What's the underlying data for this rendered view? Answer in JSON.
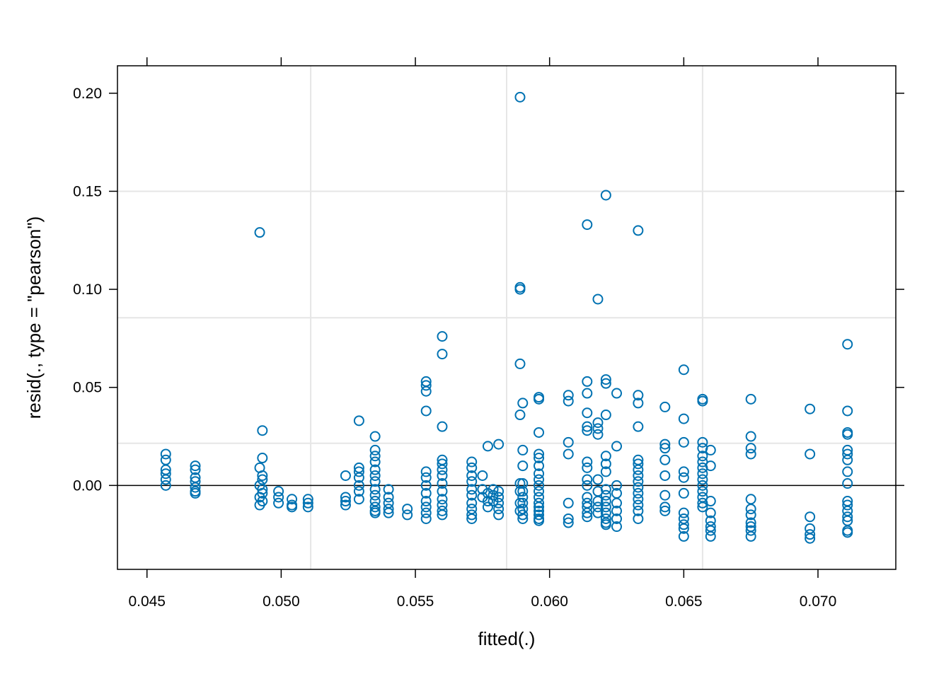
{
  "chart_data": {
    "type": "scatter",
    "xlabel": "fitted(.)",
    "ylabel": "resid(., type = \"pearson\")",
    "xlim": [
      0.0439,
      0.0729
    ],
    "ylim": [
      -0.0428,
      0.214
    ],
    "x_ticks": [
      0.045,
      0.05,
      0.055,
      0.06,
      0.065,
      0.07
    ],
    "x_tick_labels": [
      "0.045",
      "0.050",
      "0.055",
      "0.060",
      "0.065",
      "0.070"
    ],
    "y_ticks": [
      0.0,
      0.05,
      0.1,
      0.15,
      0.2
    ],
    "y_tick_labels": [
      "0.00",
      "0.05",
      "0.10",
      "0.15",
      "0.20"
    ],
    "grid": {
      "vertical": [
        0.0511,
        0.0584,
        0.0657
      ],
      "horizontal": [
        0.0215,
        0.0855,
        0.15
      ]
    },
    "reference_line_y": 0,
    "colors": {
      "points": "#0072b2",
      "grid": "#e6e6e6",
      "axis": "#000000"
    },
    "series": [
      {
        "points": [
          [
            0.0457,
            0.016
          ],
          [
            0.0457,
            0.013
          ],
          [
            0.0457,
            0.008
          ],
          [
            0.0457,
            0.006
          ],
          [
            0.0457,
            0.003
          ],
          [
            0.0457,
            0.0
          ],
          [
            0.0468,
            0.01
          ],
          [
            0.0468,
            0.008
          ],
          [
            0.0468,
            0.004
          ],
          [
            0.0468,
            0.002
          ],
          [
            0.0468,
            -0.001
          ],
          [
            0.0468,
            -0.003
          ],
          [
            0.0468,
            -0.004
          ],
          [
            0.0492,
            0.129
          ],
          [
            0.0493,
            0.028
          ],
          [
            0.0493,
            0.014
          ],
          [
            0.0492,
            0.009
          ],
          [
            0.0493,
            0.005
          ],
          [
            0.0493,
            0.003
          ],
          [
            0.0492,
            0.0
          ],
          [
            0.0493,
            -0.002
          ],
          [
            0.0493,
            -0.004
          ],
          [
            0.0492,
            -0.006
          ],
          [
            0.0493,
            -0.008
          ],
          [
            0.0492,
            -0.01
          ],
          [
            0.0499,
            -0.003
          ],
          [
            0.0499,
            -0.006
          ],
          [
            0.0499,
            -0.009
          ],
          [
            0.0504,
            -0.007
          ],
          [
            0.0504,
            -0.01
          ],
          [
            0.0504,
            -0.011
          ],
          [
            0.051,
            -0.007
          ],
          [
            0.051,
            -0.009
          ],
          [
            0.051,
            -0.011
          ],
          [
            0.0524,
            0.005
          ],
          [
            0.0524,
            -0.006
          ],
          [
            0.0524,
            -0.008
          ],
          [
            0.0524,
            -0.01
          ],
          [
            0.0529,
            0.033
          ],
          [
            0.0529,
            0.009
          ],
          [
            0.0529,
            0.007
          ],
          [
            0.0529,
            0.004
          ],
          [
            0.0529,
            0.0
          ],
          [
            0.0529,
            -0.003
          ],
          [
            0.0529,
            -0.007
          ],
          [
            0.0535,
            0.025
          ],
          [
            0.0535,
            0.018
          ],
          [
            0.0535,
            0.015
          ],
          [
            0.0535,
            0.012
          ],
          [
            0.0535,
            0.008
          ],
          [
            0.0535,
            0.005
          ],
          [
            0.0535,
            0.002
          ],
          [
            0.0535,
            -0.002
          ],
          [
            0.0535,
            -0.005
          ],
          [
            0.0535,
            -0.008
          ],
          [
            0.0535,
            -0.011
          ],
          [
            0.0535,
            -0.013
          ],
          [
            0.0535,
            -0.014
          ],
          [
            0.054,
            -0.002
          ],
          [
            0.054,
            -0.006
          ],
          [
            0.054,
            -0.009
          ],
          [
            0.054,
            -0.012
          ],
          [
            0.054,
            -0.014
          ],
          [
            0.0547,
            -0.012
          ],
          [
            0.0547,
            -0.015
          ],
          [
            0.0554,
            0.053
          ],
          [
            0.0554,
            0.051
          ],
          [
            0.0554,
            0.048
          ],
          [
            0.0554,
            0.038
          ],
          [
            0.0554,
            0.007
          ],
          [
            0.0554,
            0.004
          ],
          [
            0.0554,
            0.0
          ],
          [
            0.0554,
            -0.004
          ],
          [
            0.0554,
            -0.008
          ],
          [
            0.0554,
            -0.011
          ],
          [
            0.0554,
            -0.014
          ],
          [
            0.0554,
            -0.017
          ],
          [
            0.056,
            0.076
          ],
          [
            0.056,
            0.067
          ],
          [
            0.056,
            0.03
          ],
          [
            0.056,
            0.013
          ],
          [
            0.056,
            0.011
          ],
          [
            0.056,
            0.008
          ],
          [
            0.056,
            0.005
          ],
          [
            0.056,
            0.001
          ],
          [
            0.056,
            -0.003
          ],
          [
            0.056,
            -0.007
          ],
          [
            0.056,
            -0.01
          ],
          [
            0.056,
            -0.013
          ],
          [
            0.056,
            -0.015
          ],
          [
            0.0571,
            0.012
          ],
          [
            0.0571,
            0.009
          ],
          [
            0.0571,
            0.005
          ],
          [
            0.0571,
            0.002
          ],
          [
            0.0571,
            -0.002
          ],
          [
            0.0571,
            -0.005
          ],
          [
            0.0571,
            -0.009
          ],
          [
            0.0571,
            -0.012
          ],
          [
            0.0571,
            -0.015
          ],
          [
            0.0571,
            -0.017
          ],
          [
            0.0575,
            0.005
          ],
          [
            0.0575,
            -0.002
          ],
          [
            0.0575,
            -0.006
          ],
          [
            0.0577,
            0.02
          ],
          [
            0.0577,
            -0.004
          ],
          [
            0.0577,
            -0.008
          ],
          [
            0.0577,
            -0.011
          ],
          [
            0.0579,
            -0.002
          ],
          [
            0.0579,
            -0.005
          ],
          [
            0.0579,
            -0.008
          ],
          [
            0.0581,
            0.021
          ],
          [
            0.0581,
            -0.003
          ],
          [
            0.0581,
            -0.006
          ],
          [
            0.0581,
            -0.009
          ],
          [
            0.0581,
            -0.012
          ],
          [
            0.0581,
            -0.015
          ],
          [
            0.0589,
            0.198
          ],
          [
            0.0589,
            0.101
          ],
          [
            0.0589,
            0.1
          ],
          [
            0.0589,
            0.062
          ],
          [
            0.0589,
            0.036
          ],
          [
            0.0589,
            0.001
          ],
          [
            0.0589,
            -0.003
          ],
          [
            0.0589,
            -0.009
          ],
          [
            0.0589,
            -0.013
          ],
          [
            0.059,
            0.042
          ],
          [
            0.059,
            0.018
          ],
          [
            0.059,
            0.01
          ],
          [
            0.059,
            0.001
          ],
          [
            0.059,
            -0.003
          ],
          [
            0.059,
            -0.006
          ],
          [
            0.059,
            -0.009
          ],
          [
            0.059,
            -0.012
          ],
          [
            0.059,
            -0.015
          ],
          [
            0.059,
            -0.017
          ],
          [
            0.0596,
            0.045
          ],
          [
            0.0596,
            0.044
          ],
          [
            0.0596,
            0.027
          ],
          [
            0.0596,
            0.016
          ],
          [
            0.0596,
            0.014
          ],
          [
            0.0596,
            0.01
          ],
          [
            0.0596,
            0.006
          ],
          [
            0.0596,
            0.003
          ],
          [
            0.0596,
            0.0
          ],
          [
            0.0596,
            -0.003
          ],
          [
            0.0596,
            -0.006
          ],
          [
            0.0596,
            -0.009
          ],
          [
            0.0596,
            -0.011
          ],
          [
            0.0596,
            -0.013
          ],
          [
            0.0596,
            -0.015
          ],
          [
            0.0596,
            -0.017
          ],
          [
            0.0596,
            -0.018
          ],
          [
            0.0607,
            0.046
          ],
          [
            0.0607,
            0.043
          ],
          [
            0.0607,
            0.022
          ],
          [
            0.0607,
            0.016
          ],
          [
            0.0607,
            -0.009
          ],
          [
            0.0607,
            -0.017
          ],
          [
            0.0607,
            -0.019
          ],
          [
            0.0614,
            0.133
          ],
          [
            0.0614,
            0.053
          ],
          [
            0.0614,
            0.047
          ],
          [
            0.0614,
            0.037
          ],
          [
            0.0614,
            0.03
          ],
          [
            0.0614,
            0.028
          ],
          [
            0.0614,
            0.012
          ],
          [
            0.0614,
            0.009
          ],
          [
            0.0614,
            0.003
          ],
          [
            0.0614,
            0.0
          ],
          [
            0.0614,
            -0.006
          ],
          [
            0.0614,
            -0.009
          ],
          [
            0.0614,
            -0.011
          ],
          [
            0.0614,
            -0.014
          ],
          [
            0.0614,
            -0.016
          ],
          [
            0.0618,
            0.095
          ],
          [
            0.0618,
            0.032
          ],
          [
            0.0618,
            0.029
          ],
          [
            0.0618,
            0.026
          ],
          [
            0.0618,
            0.003
          ],
          [
            0.0618,
            -0.003
          ],
          [
            0.0618,
            -0.008
          ],
          [
            0.0618,
            -0.011
          ],
          [
            0.0618,
            -0.014
          ],
          [
            0.0621,
            0.148
          ],
          [
            0.0621,
            0.054
          ],
          [
            0.0621,
            0.052
          ],
          [
            0.0621,
            0.036
          ],
          [
            0.0621,
            0.015
          ],
          [
            0.0621,
            0.011
          ],
          [
            0.0621,
            0.007
          ],
          [
            0.0621,
            -0.002
          ],
          [
            0.0621,
            -0.005
          ],
          [
            0.0621,
            -0.008
          ],
          [
            0.0621,
            -0.011
          ],
          [
            0.0621,
            -0.014
          ],
          [
            0.0621,
            -0.017
          ],
          [
            0.0621,
            -0.019
          ],
          [
            0.0621,
            -0.02
          ],
          [
            0.0625,
            0.047
          ],
          [
            0.0625,
            0.02
          ],
          [
            0.0625,
            0.0
          ],
          [
            0.0625,
            -0.004
          ],
          [
            0.0625,
            -0.009
          ],
          [
            0.0625,
            -0.013
          ],
          [
            0.0625,
            -0.017
          ],
          [
            0.0625,
            -0.021
          ],
          [
            0.0633,
            0.13
          ],
          [
            0.0633,
            0.046
          ],
          [
            0.0633,
            0.042
          ],
          [
            0.0633,
            0.03
          ],
          [
            0.0633,
            0.013
          ],
          [
            0.0633,
            0.011
          ],
          [
            0.0633,
            0.008
          ],
          [
            0.0633,
            0.005
          ],
          [
            0.0633,
            0.002
          ],
          [
            0.0633,
            -0.001
          ],
          [
            0.0633,
            -0.004
          ],
          [
            0.0633,
            -0.007
          ],
          [
            0.0633,
            -0.01
          ],
          [
            0.0633,
            -0.013
          ],
          [
            0.0633,
            -0.017
          ],
          [
            0.0643,
            0.04
          ],
          [
            0.0643,
            0.021
          ],
          [
            0.0643,
            0.019
          ],
          [
            0.0643,
            0.013
          ],
          [
            0.0643,
            0.005
          ],
          [
            0.0643,
            -0.005
          ],
          [
            0.0643,
            -0.011
          ],
          [
            0.0643,
            -0.013
          ],
          [
            0.065,
            0.059
          ],
          [
            0.065,
            0.034
          ],
          [
            0.065,
            0.022
          ],
          [
            0.065,
            0.007
          ],
          [
            0.065,
            0.004
          ],
          [
            0.065,
            -0.004
          ],
          [
            0.065,
            -0.014
          ],
          [
            0.065,
            -0.017
          ],
          [
            0.065,
            -0.02
          ],
          [
            0.065,
            -0.022
          ],
          [
            0.065,
            -0.026
          ],
          [
            0.0657,
            0.044
          ],
          [
            0.0657,
            0.043
          ],
          [
            0.0657,
            0.022
          ],
          [
            0.0657,
            0.019
          ],
          [
            0.0657,
            0.015
          ],
          [
            0.0657,
            0.012
          ],
          [
            0.0657,
            0.009
          ],
          [
            0.0657,
            0.006
          ],
          [
            0.0657,
            0.003
          ],
          [
            0.0657,
            0.0
          ],
          [
            0.0657,
            -0.003
          ],
          [
            0.0657,
            -0.006
          ],
          [
            0.0657,
            -0.009
          ],
          [
            0.0657,
            -0.011
          ],
          [
            0.066,
            0.018
          ],
          [
            0.066,
            0.01
          ],
          [
            0.066,
            -0.008
          ],
          [
            0.066,
            -0.014
          ],
          [
            0.066,
            -0.018
          ],
          [
            0.066,
            -0.021
          ],
          [
            0.066,
            -0.023
          ],
          [
            0.066,
            -0.026
          ],
          [
            0.0675,
            0.044
          ],
          [
            0.0675,
            0.025
          ],
          [
            0.0675,
            0.019
          ],
          [
            0.0675,
            0.016
          ],
          [
            0.0675,
            -0.007
          ],
          [
            0.0675,
            -0.012
          ],
          [
            0.0675,
            -0.015
          ],
          [
            0.0675,
            -0.019
          ],
          [
            0.0675,
            -0.021
          ],
          [
            0.0675,
            -0.023
          ],
          [
            0.0675,
            -0.026
          ],
          [
            0.0697,
            0.039
          ],
          [
            0.0697,
            0.016
          ],
          [
            0.0697,
            -0.016
          ],
          [
            0.0697,
            -0.022
          ],
          [
            0.0697,
            -0.025
          ],
          [
            0.0697,
            -0.027
          ],
          [
            0.0711,
            0.072
          ],
          [
            0.0711,
            0.038
          ],
          [
            0.0711,
            0.027
          ],
          [
            0.0711,
            0.026
          ],
          [
            0.0711,
            0.018
          ],
          [
            0.0711,
            0.016
          ],
          [
            0.0711,
            0.013
          ],
          [
            0.0711,
            0.007
          ],
          [
            0.0711,
            0.001
          ],
          [
            0.0711,
            -0.008
          ],
          [
            0.0711,
            -0.01
          ],
          [
            0.0711,
            -0.013
          ],
          [
            0.0711,
            -0.016
          ],
          [
            0.0711,
            -0.018
          ],
          [
            0.0711,
            -0.023
          ],
          [
            0.0711,
            -0.024
          ]
        ]
      }
    ]
  }
}
